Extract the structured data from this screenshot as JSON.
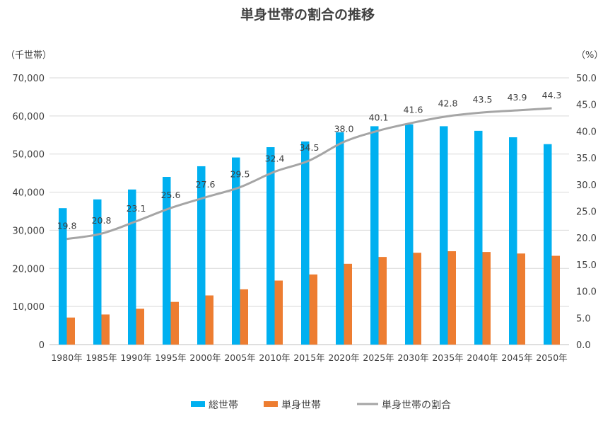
{
  "chart_data": {
    "type": "bar+line",
    "title": "単身世帯の割合の推移",
    "ylabel_left": "（千世帯）",
    "ylabel_right": "（%）",
    "categories": [
      "1980年",
      "1985年",
      "1990年",
      "1995年",
      "2000年",
      "2005年",
      "2010年",
      "2015年",
      "2020年",
      "2025年",
      "2030年",
      "2035年",
      "2040年",
      "2045年",
      "2050年"
    ],
    "ylim_left": [
      0,
      70000
    ],
    "yticks_left": [
      "0",
      "10,000",
      "20,000",
      "30,000",
      "40,000",
      "50,000",
      "60,000",
      "70,000"
    ],
    "ylim_right": [
      0,
      50
    ],
    "yticks_right": [
      "0.0",
      "5.0",
      "10.0",
      "15.0",
      "20.0",
      "25.0",
      "30.0",
      "35.0",
      "40.0",
      "45.0",
      "50.0"
    ],
    "grid": true,
    "legend_position": "bottom",
    "series": [
      {
        "name": "総世帯",
        "type": "bar",
        "axis": "left",
        "color": "#00b0f0",
        "values": [
          35800,
          38100,
          40700,
          44000,
          46800,
          49100,
          51800,
          53300,
          55700,
          57300,
          57800,
          57300,
          56100,
          54400,
          52600
        ]
      },
      {
        "name": "単身世帯",
        "type": "bar",
        "axis": "left",
        "color": "#ed7d31",
        "values": [
          7100,
          7900,
          9400,
          11200,
          12900,
          14500,
          16800,
          18400,
          21200,
          23000,
          24100,
          24500,
          24300,
          23900,
          23300
        ]
      },
      {
        "name": "単身世帯の割合",
        "type": "line",
        "axis": "right",
        "color": "#a5a5a5",
        "values": [
          19.8,
          20.8,
          23.1,
          25.6,
          27.6,
          29.5,
          32.4,
          34.5,
          38.0,
          40.1,
          41.6,
          42.8,
          43.5,
          43.9,
          44.3
        ],
        "labels": [
          "19.8",
          "20.8",
          "23.1",
          "25.6",
          "27.6",
          "29.5",
          "32.4",
          "34.5",
          "38.0",
          "40.1",
          "41.6",
          "42.8",
          "43.5",
          "43.9",
          "44.3"
        ]
      }
    ]
  }
}
